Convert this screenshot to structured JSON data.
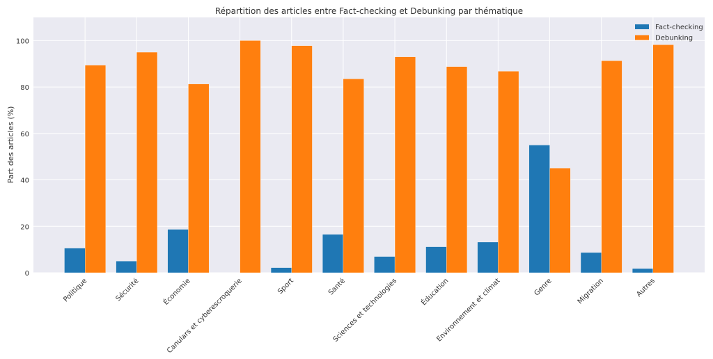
{
  "chart_data": {
    "type": "bar",
    "title": "Répartition des articles entre Fact-checking et Debunking par thématique",
    "xlabel": "",
    "ylabel": "Part des articles (%)",
    "ylim": [
      0,
      110
    ],
    "yticks": [
      0,
      20,
      40,
      60,
      80,
      100
    ],
    "grid": true,
    "legend_placement": "top-right",
    "categories": [
      "Politique",
      "Sécurité",
      "Économie",
      "Canulars et cyberescroquerie",
      "Sport",
      "Santé",
      "Sciences et technologies",
      "Éducation",
      "Environnement et climat",
      "Genre",
      "Migration",
      "Autres"
    ],
    "series": [
      {
        "name": "Fact-checking",
        "color": "#1f77b4",
        "values": [
          10.6,
          5.0,
          18.7,
          0,
          2.2,
          16.5,
          7.0,
          11.2,
          13.2,
          55.0,
          8.7,
          1.8
        ]
      },
      {
        "name": "Debunking",
        "color": "#ff7f0e",
        "values": [
          89.4,
          95.0,
          81.3,
          100,
          97.8,
          83.5,
          93.0,
          88.8,
          86.8,
          45.0,
          91.3,
          98.2
        ]
      }
    ],
    "background_color": "#eaeaf2"
  }
}
